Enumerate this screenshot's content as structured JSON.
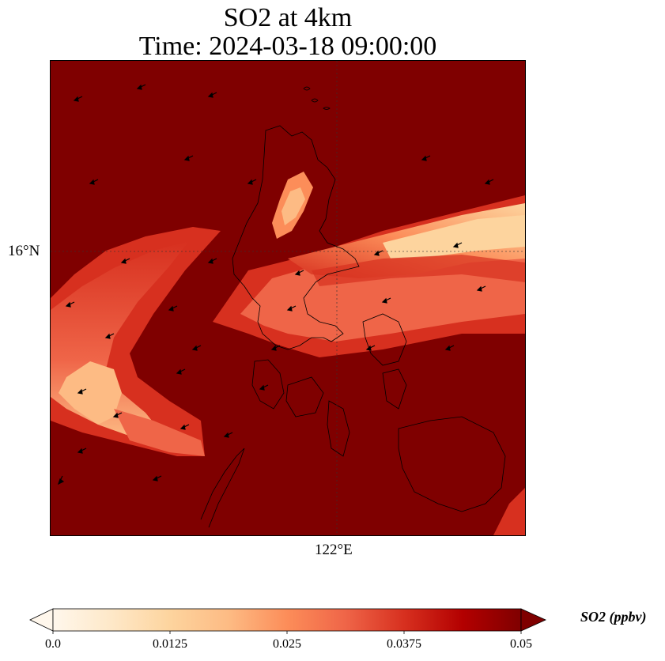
{
  "title": {
    "line1": "SO2 at 4km",
    "line2": "Time: 2024-03-18 09:00:00"
  },
  "map": {
    "lat_label": "16°N",
    "lon_label": "122°E",
    "background_color": "#7f0000",
    "coastline_color": "#000000"
  },
  "colorbar": {
    "label": "SO2 (ppbv)",
    "min": 0.0,
    "max": 0.05,
    "extend": "both",
    "ticks": [
      "0.0",
      "0.0125",
      "0.025",
      "0.0375",
      "0.05"
    ],
    "colormap": "OrRd",
    "colors": [
      "#fff7ec",
      "#fee8c8",
      "#fdd49e",
      "#fdbb84",
      "#fc8d59",
      "#ef6548",
      "#d7301f",
      "#b30000",
      "#7f0000"
    ]
  }
}
